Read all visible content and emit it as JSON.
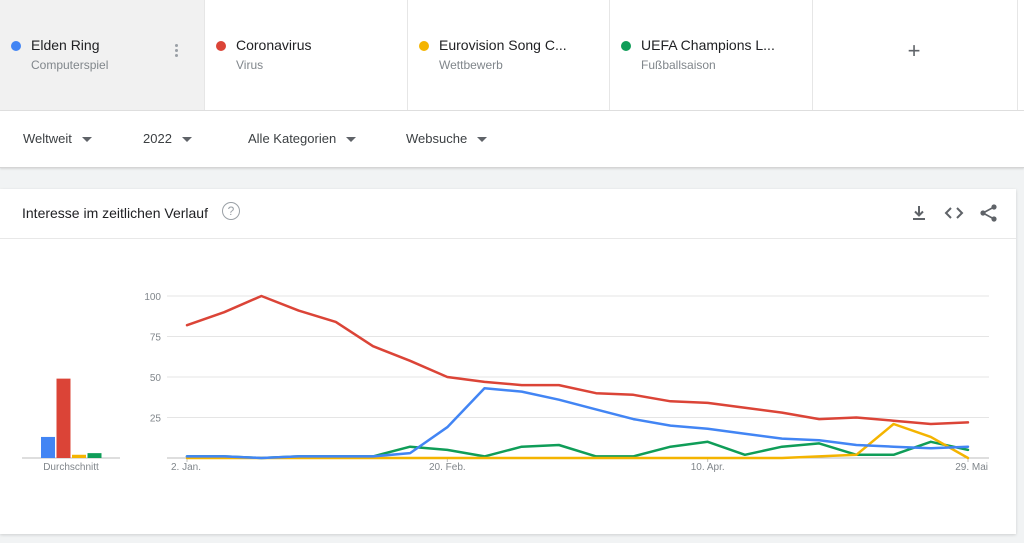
{
  "terms": [
    {
      "name": "Elden Ring",
      "sub": "Computerspiel",
      "color": "#4285f4"
    },
    {
      "name": "Coronavirus",
      "sub": "Virus",
      "color": "#db4437"
    },
    {
      "name": "Eurovision Song C...",
      "sub": "Wettbewerb",
      "color": "#f4b400"
    },
    {
      "name": "UEFA Champions L...",
      "sub": "Fußballsaison",
      "color": "#0f9d58"
    }
  ],
  "add_label": "+",
  "filters": {
    "region": "Weltweit",
    "year": "2022",
    "category": "Alle Kategorien",
    "search_type": "Websuche"
  },
  "card": {
    "title": "Interesse im zeitlichen Verlauf",
    "help": "?"
  },
  "chart_data": {
    "type": "line",
    "x_ticks": [
      "2. Jan.",
      "20. Feb.",
      "10. Apr.",
      "29. Mai"
    ],
    "ylim": [
      0,
      100
    ],
    "y_ticks": [
      "100",
      "75",
      "50",
      "25"
    ],
    "grid": true,
    "average_label": "Durchschnitt",
    "averages": [
      {
        "name": "Elden Ring",
        "value": 13,
        "color": "#4285f4"
      },
      {
        "name": "Coronavirus",
        "value": 49,
        "color": "#db4437"
      },
      {
        "name": "Eurovision Song C...",
        "value": 2,
        "color": "#f4b400"
      },
      {
        "name": "UEFA Champions L...",
        "value": 3,
        "color": "#0f9d58"
      }
    ],
    "series": [
      {
        "name": "Elden Ring",
        "color": "#4285f4",
        "values": [
          1,
          1,
          0,
          1,
          1,
          1,
          3,
          19,
          43,
          41,
          36,
          30,
          24,
          20,
          18,
          15,
          12,
          11,
          8,
          7,
          6,
          7
        ]
      },
      {
        "name": "Coronavirus",
        "color": "#db4437",
        "values": [
          82,
          90,
          100,
          91,
          84,
          69,
          60,
          50,
          47,
          45,
          45,
          40,
          39,
          35,
          34,
          31,
          28,
          24,
          25,
          23,
          21,
          22
        ]
      },
      {
        "name": "Eurovision Song C...",
        "color": "#f4b400",
        "values": [
          0,
          0,
          0,
          0,
          0,
          0,
          0,
          0,
          0,
          0,
          0,
          0,
          0,
          0,
          0,
          0,
          0,
          1,
          2,
          21,
          13,
          0
        ]
      },
      {
        "name": "UEFA Champions L...",
        "color": "#0f9d58",
        "values": [
          1,
          1,
          0,
          1,
          1,
          1,
          7,
          5,
          1,
          7,
          8,
          1,
          1,
          7,
          10,
          2,
          7,
          9,
          2,
          2,
          10,
          5
        ]
      }
    ]
  }
}
